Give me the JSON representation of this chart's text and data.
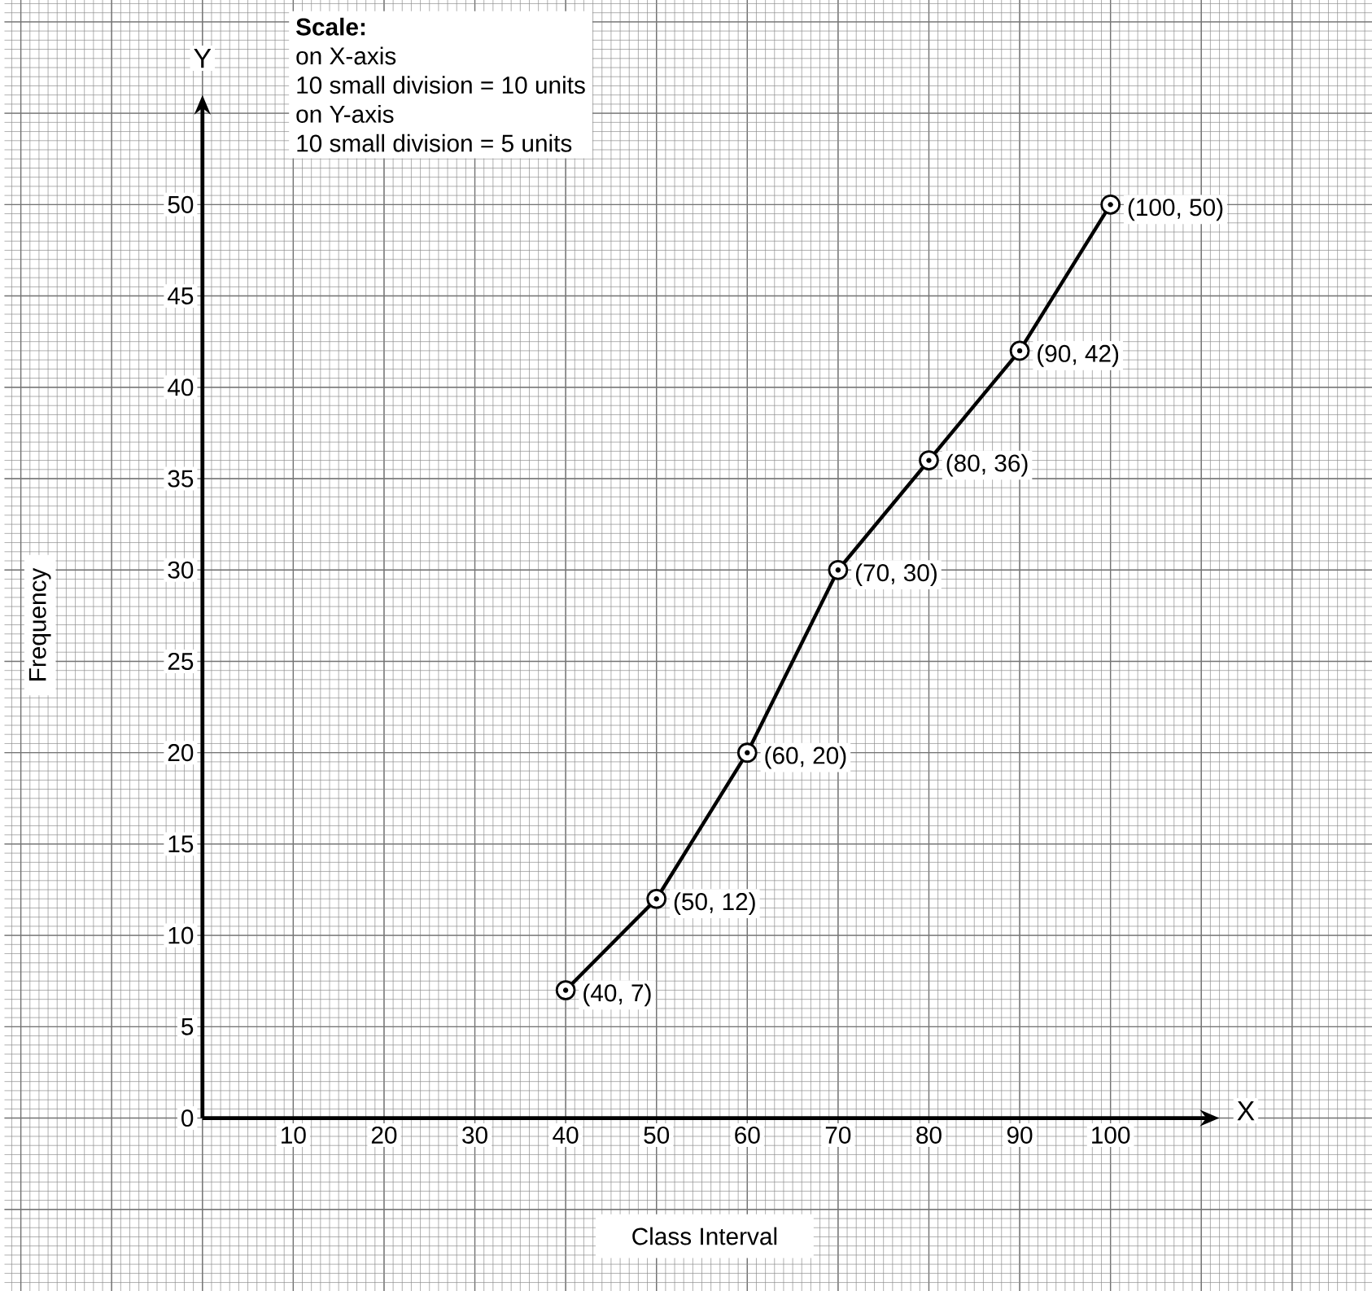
{
  "chart_data": {
    "type": "line",
    "xlabel": "Class Interval",
    "ylabel": "Frequency",
    "x": [
      40,
      50,
      60,
      70,
      80,
      90,
      100
    ],
    "values": [
      7,
      12,
      20,
      30,
      36,
      42,
      50
    ],
    "value_labels": [
      "(40, 7)",
      "(50, 12)",
      "(60, 20)",
      "(70, 30)",
      "(80, 36)",
      "(90, 42)",
      "(100, 50)"
    ],
    "color": "#000000",
    "marker": "circle",
    "line_style": "solid",
    "grid": true,
    "xlim": [
      -21.8,
      128.8
    ],
    "ylim": [
      -9.5,
      61.2
    ],
    "xticks": [
      10,
      20,
      30,
      40,
      50,
      60,
      70,
      80,
      90,
      100
    ],
    "yticks": [
      0,
      5,
      10,
      15,
      20,
      25,
      30,
      35,
      40,
      45,
      50
    ],
    "annotations": [
      "Scale:",
      "on X-axis",
      "10 small division = 10 units",
      "on Y-axis",
      "10 small division = 5 units",
      "X",
      "Y"
    ]
  }
}
